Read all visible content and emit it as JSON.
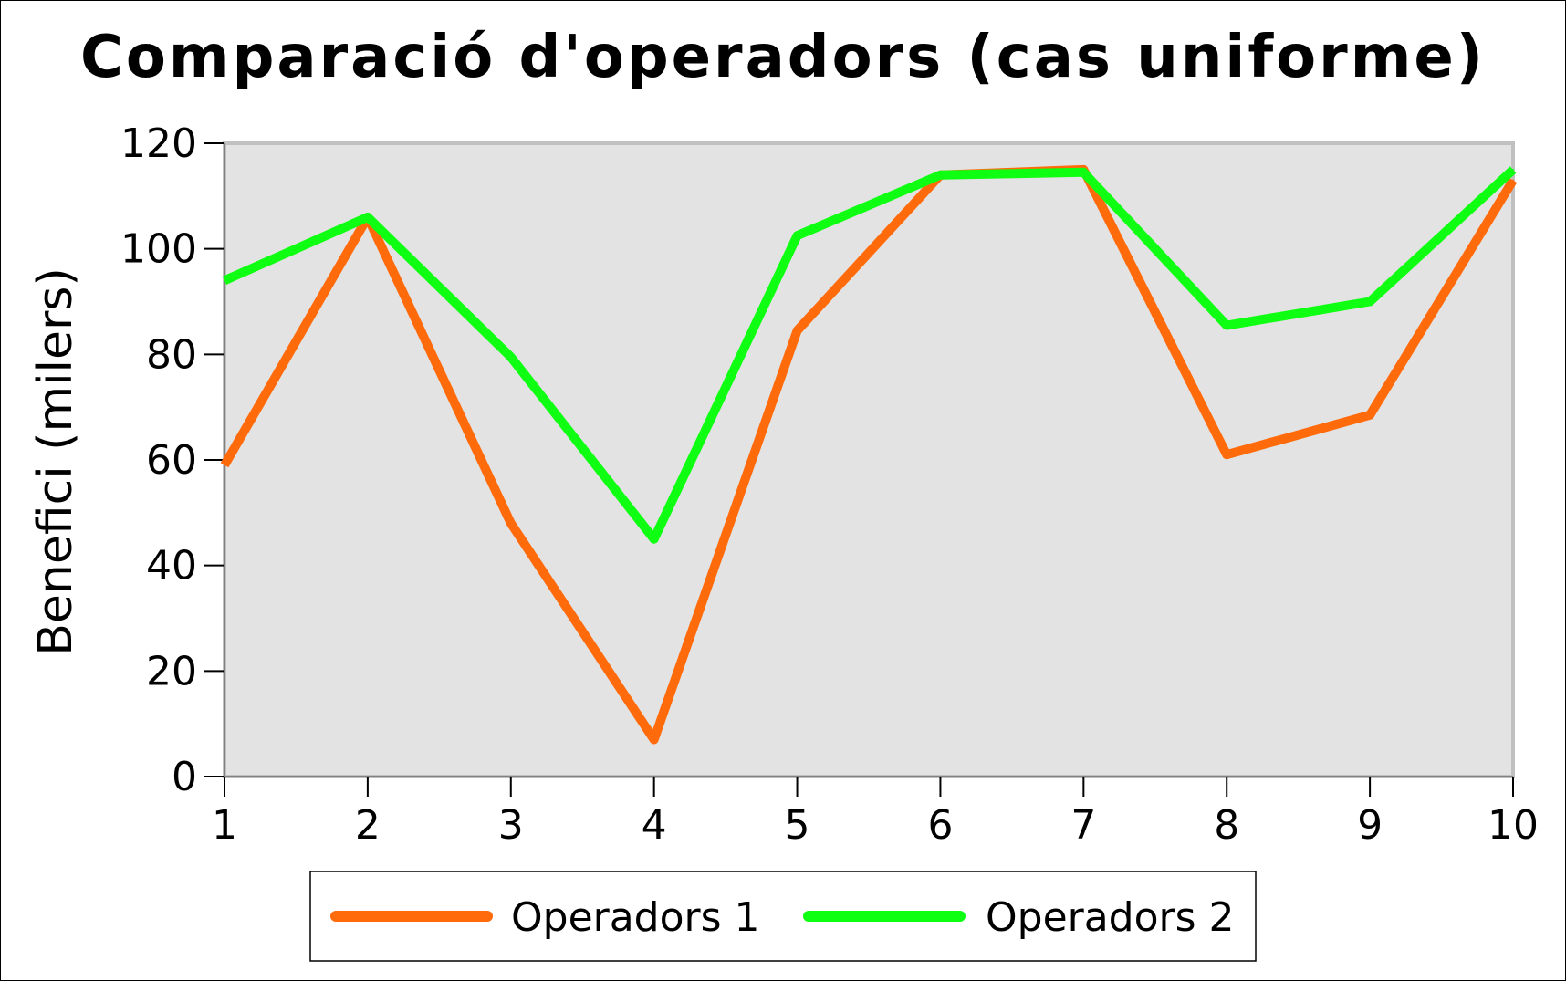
{
  "chart_data": {
    "type": "line",
    "title": "Comparació d'operadors (cas uniforme)",
    "xlabel": "",
    "ylabel": "Benefici (milers)",
    "x": [
      1,
      2,
      3,
      4,
      5,
      6,
      7,
      8,
      9,
      10
    ],
    "xlim": [
      1,
      10
    ],
    "ylim": [
      0,
      120
    ],
    "yticks": [
      0,
      20,
      40,
      60,
      80,
      100,
      120
    ],
    "xticks": [
      1,
      2,
      3,
      4,
      5,
      6,
      7,
      8,
      9,
      10
    ],
    "grid": false,
    "legend_position": "bottom",
    "plot_background": "#e3e3e3",
    "series": [
      {
        "name": "Operadors 1",
        "color": "#ff6a0a",
        "values": [
          59,
          106,
          48,
          7,
          84.5,
          114,
          115,
          61,
          68.5,
          113
        ]
      },
      {
        "name": "Operadors 2",
        "color": "#0fff12",
        "values": [
          94,
          106,
          79.5,
          45,
          102.5,
          114,
          114.5,
          85.5,
          90,
          115
        ]
      }
    ]
  }
}
